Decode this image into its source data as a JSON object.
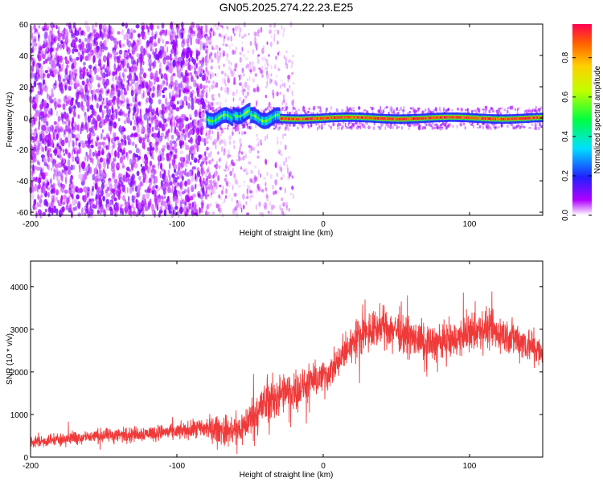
{
  "title": "GN05.2025.274.22.23.E25",
  "chart_data": [
    {
      "type": "heatmap",
      "xlabel": "Height of straight line (km)",
      "ylabel": "Frequency (Hz)",
      "xlim": [
        -200,
        150
      ],
      "ylim": [
        -62,
        60
      ],
      "x_ticks": [
        -200,
        -100,
        0,
        100
      ],
      "y_ticks": [
        -60,
        -40,
        -20,
        0,
        20,
        40,
        60
      ],
      "colorbar": {
        "label": "Normalized spectral amplitude",
        "range": [
          0,
          0.97
        ],
        "ticks": [
          "0.0",
          "0.2",
          "0.4",
          "0.6",
          "0.8"
        ],
        "tick_values": [
          0,
          0.2,
          0.4,
          0.6,
          0.8
        ],
        "colormap": "rainbow"
      },
      "regions": [
        {
          "x_range": [
            -200,
            -80
          ],
          "frequency_range": [
            -62,
            60
          ],
          "amplitude": "low (~0.05-0.15), broadband noise"
        },
        {
          "x_range": [
            -80,
            -30
          ],
          "frequency_range": [
            -62,
            60
          ],
          "amplitude": "very low, sparse broadband noise"
        },
        {
          "x_range": [
            -80,
            -30
          ],
          "frequency_range": [
            -6,
            6
          ],
          "amplitude": "moderate (~0.2-0.6), line near 0 Hz"
        },
        {
          "x_range": [
            -30,
            150
          ],
          "frequency_range": [
            -3,
            3
          ],
          "amplitude": "high (~0.8-0.97), line at 0 Hz"
        }
      ]
    },
    {
      "type": "line",
      "xlabel": "Height of straight line (km)",
      "ylabel": "SNR (10 * v/v)",
      "xlim": [
        -200,
        150
      ],
      "ylim": [
        0,
        4600
      ],
      "x_ticks": [
        -200,
        -100,
        0,
        100
      ],
      "y_ticks": [
        0,
        1000,
        2000,
        3000,
        4000
      ],
      "series": [
        {
          "color": "#ef3a3a",
          "x": [
            -200,
            -180,
            -160,
            -140,
            -120,
            -100,
            -90,
            -80,
            -70,
            -60,
            -55,
            -50,
            -45,
            -40,
            -35,
            -30,
            -25,
            -20,
            -15,
            -10,
            -5,
            0,
            5,
            10,
            15,
            20,
            25,
            30,
            40,
            50,
            60,
            70,
            80,
            90,
            100,
            110,
            120,
            130,
            140,
            150
          ],
          "y": [
            350,
            420,
            480,
            520,
            560,
            600,
            640,
            680,
            640,
            600,
            700,
            900,
            1100,
            1250,
            1350,
            1450,
            1500,
            1550,
            1600,
            1700,
            1800,
            1900,
            2000,
            2200,
            2450,
            2700,
            2850,
            2950,
            3050,
            3000,
            2800,
            2650,
            2700,
            2750,
            2900,
            3000,
            2900,
            2800,
            2650,
            2400
          ],
          "spread": [
            150,
            160,
            170,
            180,
            190,
            200,
            220,
            300,
            350,
            400,
            420,
            480,
            550,
            550,
            550,
            550,
            500,
            480,
            460,
            440,
            420,
            400,
            400,
            420,
            450,
            480,
            480,
            480,
            480,
            480,
            470,
            460,
            460,
            470,
            480,
            480,
            480,
            470,
            460,
            440
          ]
        }
      ]
    }
  ]
}
